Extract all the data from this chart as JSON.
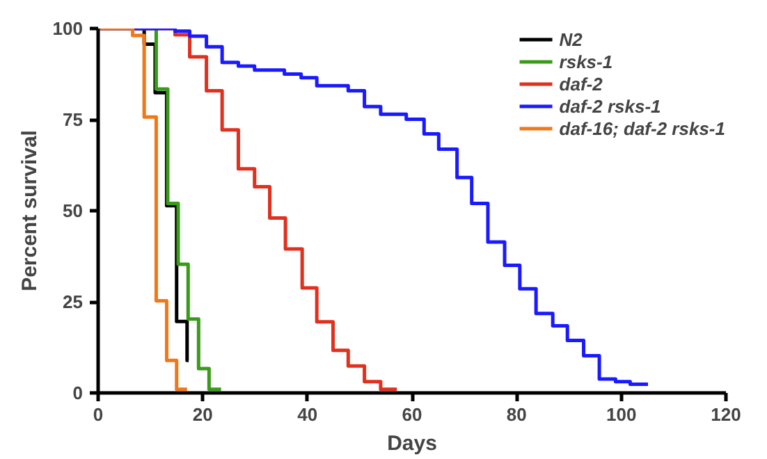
{
  "chart_data": {
    "type": "step",
    "xlabel": "Days",
    "ylabel": "Percent survival",
    "xlim": [
      0,
      120
    ],
    "xticks": [
      0,
      20,
      40,
      60,
      80,
      100,
      120
    ],
    "ylim": [
      0,
      100
    ],
    "yticks": [
      0,
      25,
      50,
      75,
      100
    ],
    "grid": false,
    "legend": "top right",
    "series": [
      {
        "name": "N2",
        "color": "#000000",
        "x": [
          0,
          8.8,
          10.9,
          13.1,
          15,
          17,
          17.3
        ],
        "values": [
          100,
          95.7,
          82.4,
          51.4,
          19.6,
          8.9,
          8.9
        ]
      },
      {
        "name": "rsks-1",
        "color": "#3a9a1a",
        "x": [
          0,
          11.1,
          13.3,
          15.3,
          17.2,
          19.2,
          21.2,
          23.5
        ],
        "values": [
          100,
          83.4,
          52,
          35.3,
          20.3,
          6.7,
          1,
          1
        ]
      },
      {
        "name": "daf-2",
        "color": "#e0301e",
        "x": [
          0,
          14.7,
          17.5,
          20.7,
          23.7,
          26.8,
          29.9,
          32.8,
          35.8,
          39,
          41.8,
          44.9,
          47.8,
          50.9,
          54,
          57.1
        ],
        "values": [
          100,
          98.3,
          92.2,
          82.9,
          72.2,
          61.5,
          56.6,
          48,
          39.5,
          28.8,
          19.5,
          11.7,
          7.4,
          3.1,
          1,
          1
        ]
      },
      {
        "name": "daf-2 rsks-1",
        "color": "#1a1aff",
        "x": [
          0,
          14.7,
          17.5,
          20.7,
          23.7,
          26.8,
          29.9,
          35.6,
          38.8,
          41.8,
          47.8,
          50.9,
          54,
          58.9,
          62.3,
          65.1,
          68.6,
          71.4,
          74.5,
          77.7,
          80.6,
          83.7,
          86.9,
          89.7,
          92.8,
          95.8,
          98.9,
          101.7,
          105.1
        ],
        "values": [
          100,
          99.3,
          97.9,
          95,
          90.7,
          89.7,
          88.6,
          87.5,
          86.5,
          84.3,
          82.9,
          78.6,
          76.5,
          75.1,
          71.1,
          66.9,
          59.1,
          52,
          41.4,
          35,
          28.6,
          21.8,
          18.4,
          14.4,
          10.2,
          3.8,
          3.1,
          2.4,
          2.4
        ]
      },
      {
        "name": "daf-16; daf-2 rsks-1",
        "color": "#f07818",
        "x": [
          0,
          6.6,
          8.8,
          11.1,
          13.1,
          15,
          17
        ],
        "values": [
          100,
          98.1,
          75.7,
          25.3,
          8.9,
          1,
          1
        ]
      }
    ]
  }
}
